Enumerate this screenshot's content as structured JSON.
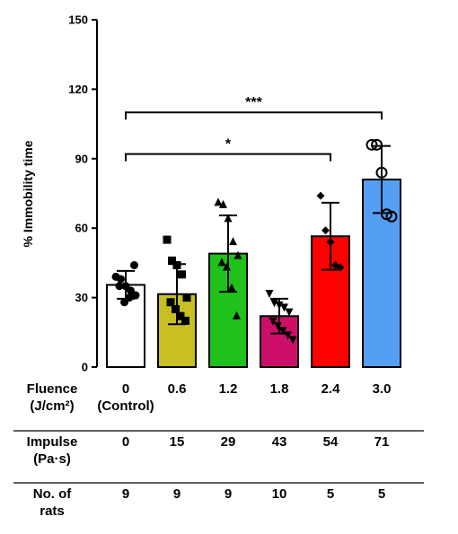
{
  "chart_data": {
    "type": "bar",
    "ylabel": "% Immobility time",
    "ylim": [
      0,
      150
    ],
    "yticks": [
      "0",
      "30",
      "60",
      "90",
      "120",
      "150"
    ],
    "grid": false,
    "groups": [
      {
        "color": "#ffffff",
        "mean": 35.5,
        "sd": 6.0,
        "marker": "circle-filled",
        "points": [
          39,
          38,
          35,
          33,
          31,
          35,
          28,
          30,
          44
        ]
      },
      {
        "color": "#c8bf22",
        "mean": 31.5,
        "sd": 13.0,
        "marker": "square",
        "points": [
          55,
          46,
          44,
          40,
          30,
          28,
          25,
          22,
          20
        ]
      },
      {
        "color": "#1fc21b",
        "mean": 49.0,
        "sd": 16.5,
        "marker": "triangle-up",
        "points": [
          71,
          70,
          64,
          54,
          48,
          45,
          43,
          34,
          22
        ]
      },
      {
        "color": "#cd0f6a",
        "mean": 22.0,
        "sd": 7.5,
        "marker": "triangle-down",
        "points": [
          32,
          28,
          27,
          26,
          24,
          20,
          18,
          16,
          14,
          12
        ]
      },
      {
        "color": "#ff0000",
        "mean": 56.5,
        "sd": 14.5,
        "marker": "diamond",
        "points": [
          74,
          59,
          54,
          44,
          43
        ]
      },
      {
        "color": "#559ff3",
        "mean": 81.0,
        "sd": 14.5,
        "marker": "circle-open",
        "points": [
          96,
          96,
          84,
          66,
          65
        ]
      }
    ],
    "significance": [
      {
        "from": 0,
        "to": 4,
        "label": "*",
        "y": 92
      },
      {
        "from": 0,
        "to": 5,
        "label": "***",
        "y": 110
      }
    ]
  },
  "table": {
    "rows": [
      {
        "label": [
          "Fluence",
          "(J/cm²)"
        ],
        "values": [
          "0",
          "0.6",
          "1.2",
          "1.8",
          "2.4",
          "3.0"
        ],
        "subvalues": [
          "(Control)",
          "",
          "",
          "",
          "",
          ""
        ]
      },
      {
        "label": [
          "Impulse",
          "(Pa·s)"
        ],
        "values": [
          "0",
          "15",
          "29",
          "43",
          "54",
          "71"
        ],
        "subvalues": [
          "",
          "",
          "",
          "",
          "",
          ""
        ]
      },
      {
        "label": [
          "No. of",
          "rats"
        ],
        "values": [
          "9",
          "9",
          "9",
          "10",
          "5",
          "5"
        ],
        "subvalues": [
          "",
          "",
          "",
          "",
          "",
          ""
        ]
      }
    ]
  }
}
